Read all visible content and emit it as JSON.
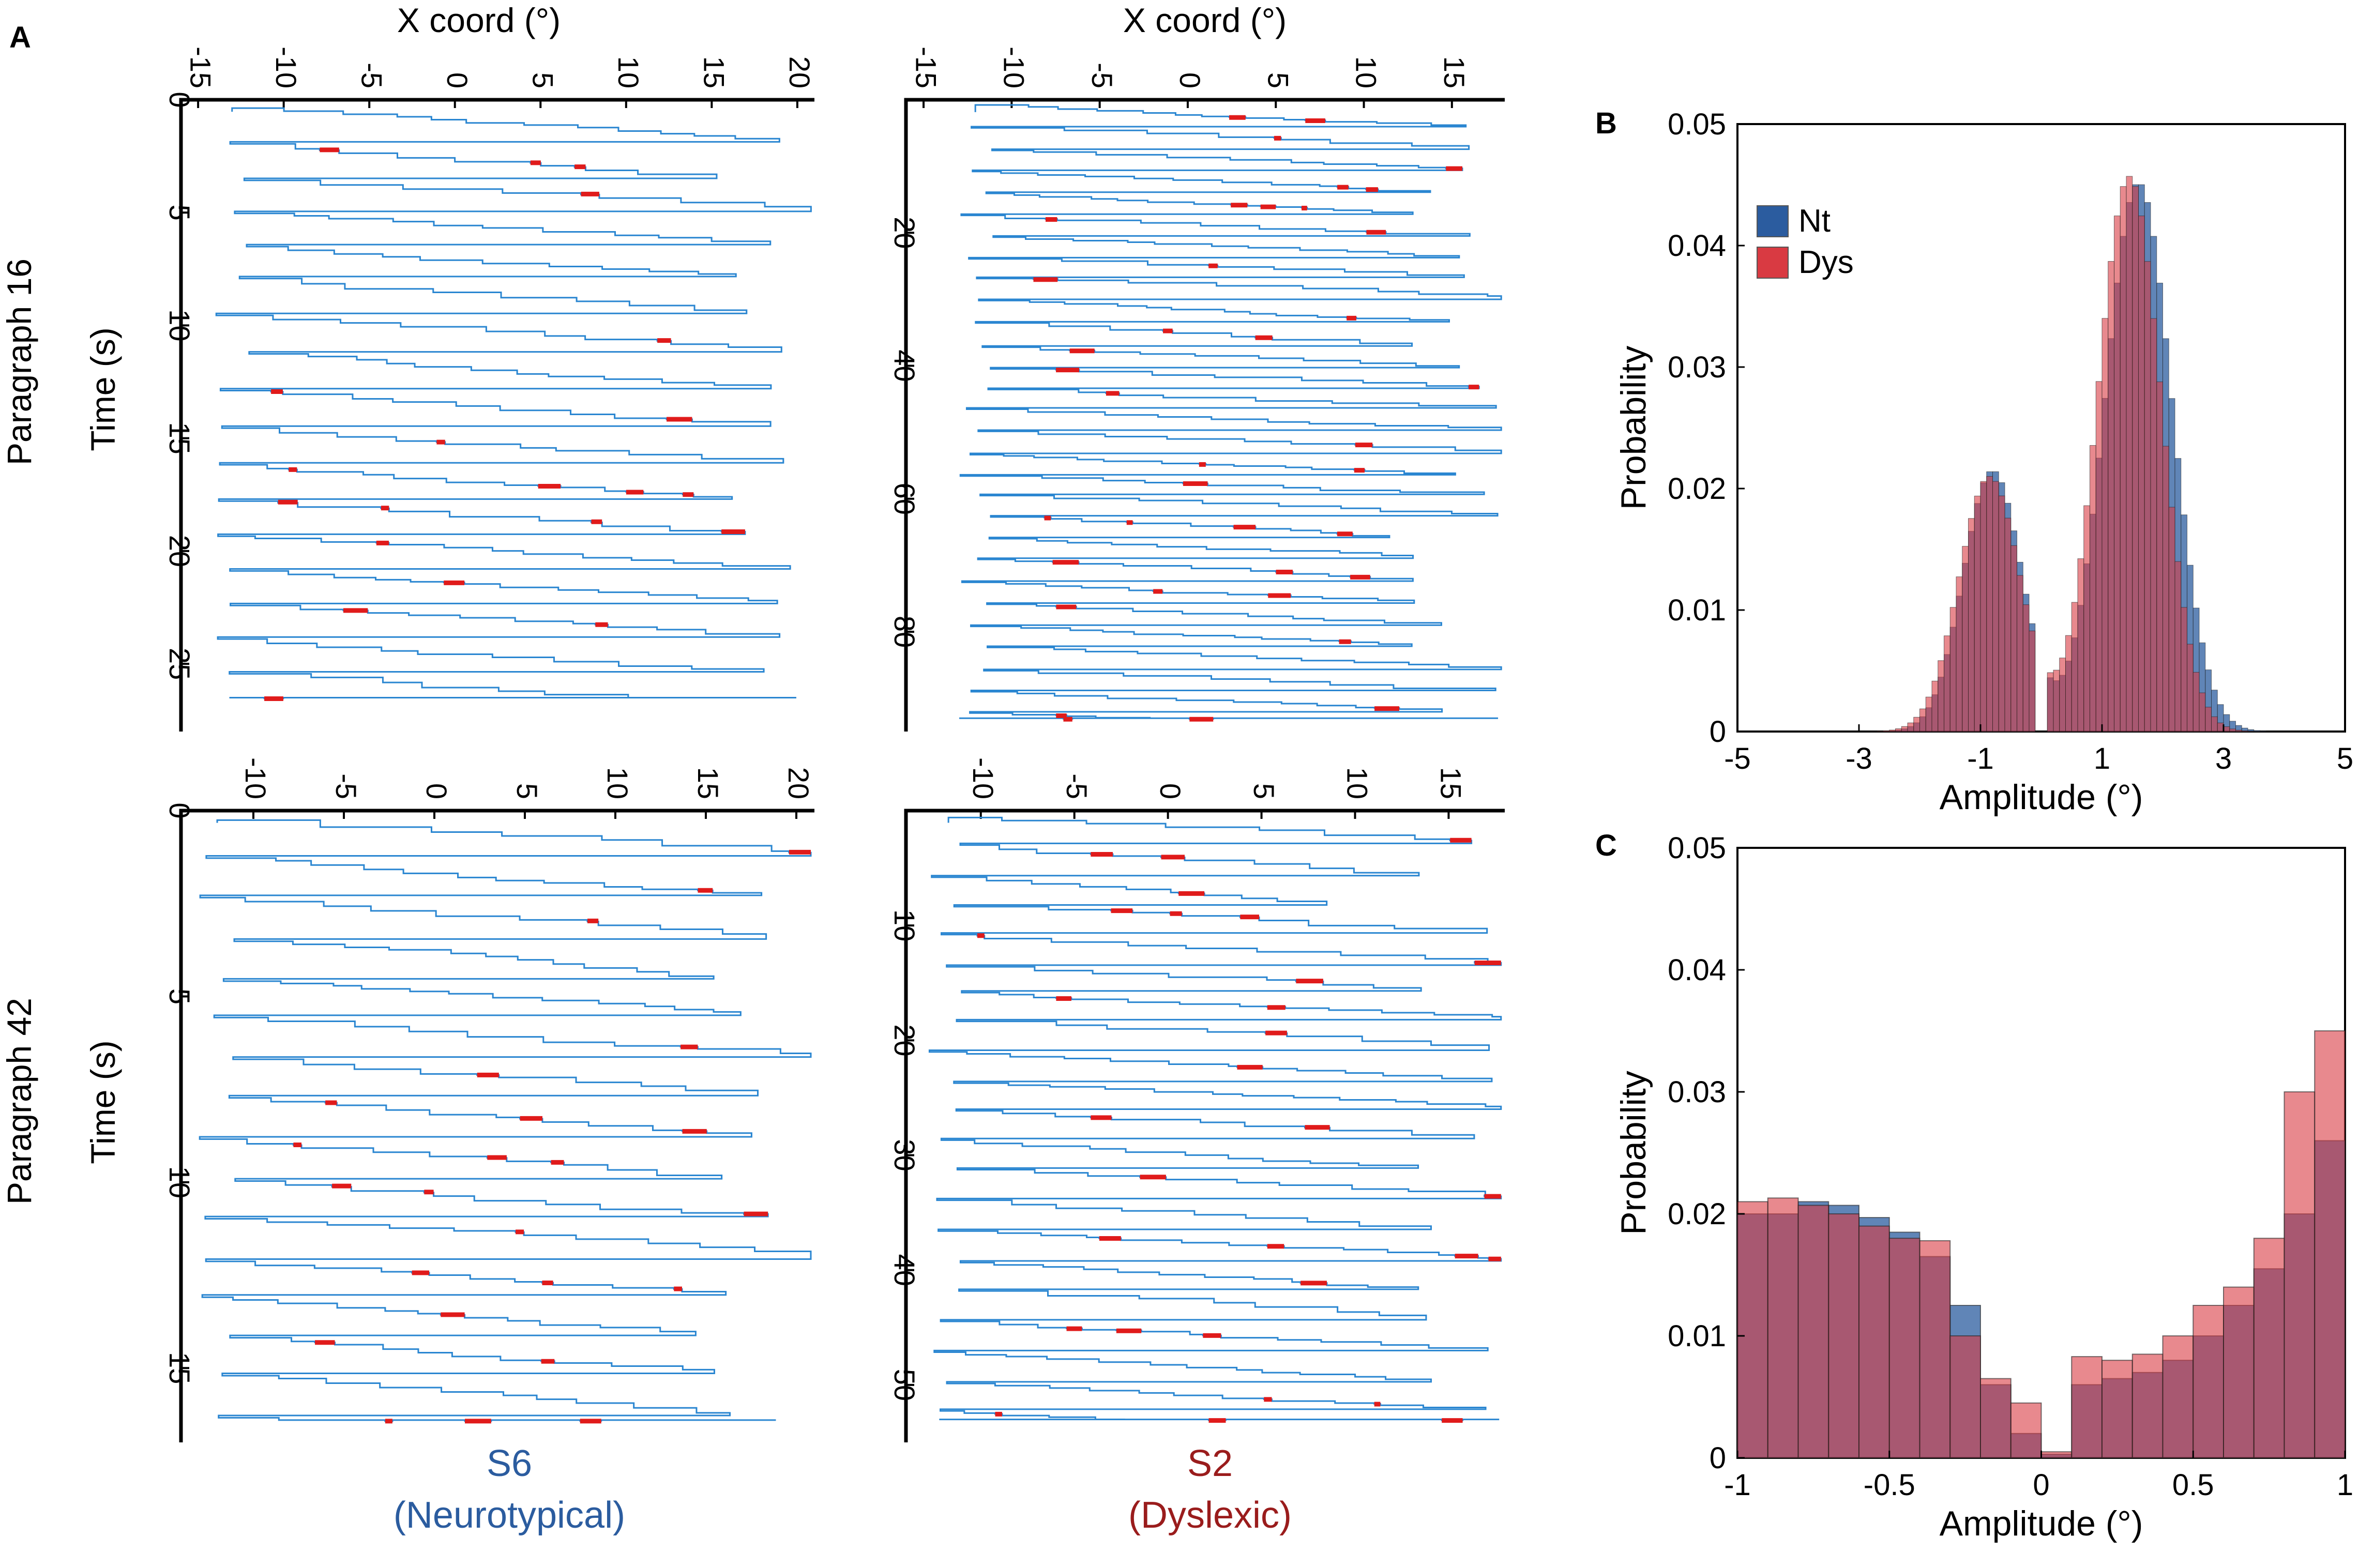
{
  "panel_letters": {
    "a": "A",
    "b": "B",
    "c": "C"
  },
  "colors": {
    "trace": "#2a86d1",
    "regression": "#e01b1b",
    "nt": "#2b5c9f",
    "dys": "#d93a42",
    "nt_text": "#2b5c9f",
    "dys_text": "#9a1c1c"
  },
  "panel_a": {
    "x_axis_title": "X coord (°)",
    "y_axis_title": "Time (s)",
    "row_labels": [
      "Paragraph 16",
      "Paragraph 42"
    ],
    "subject_labels": [
      {
        "id": "S6",
        "group": "(Neurotypical)"
      },
      {
        "id": "S2",
        "group": "(Dyslexic)"
      }
    ]
  },
  "chart_data": [
    {
      "type": "line",
      "name": "S6 Paragraph 16",
      "title": "Paragraph 16 / S6 (Neurotypical)",
      "xlabel": "X coord (°)",
      "ylabel": "Time (s)",
      "xlim": [
        -16,
        21
      ],
      "ylim": [
        0,
        28
      ],
      "y_reversed": true,
      "xticks": [
        -15,
        -10,
        -5,
        0,
        5,
        10,
        15,
        20
      ],
      "yticks": [
        0,
        5,
        10,
        15,
        20,
        25
      ],
      "lines": 18,
      "gaze_start": -14,
      "gaze_end": 20,
      "total_time": 26.5,
      "series": [
        "eye position (blue)",
        "regressions (red)"
      ]
    },
    {
      "type": "line",
      "name": "S2 Paragraph 16",
      "title": "Paragraph 16 / S2 (Dyslexic)",
      "xlabel": "X coord (°)",
      "ylabel": "Time (s)",
      "xlim": [
        -16,
        18
      ],
      "ylim": [
        0,
        95
      ],
      "y_reversed": true,
      "xticks": [
        -15,
        -10,
        -5,
        0,
        5,
        10,
        15
      ],
      "yticks": [
        20,
        40,
        60,
        80
      ],
      "lines": 30,
      "gaze_start": -13,
      "gaze_end": 17,
      "total_time": 93,
      "series": [
        "eye position (blue)",
        "regressions (red)"
      ]
    },
    {
      "type": "line",
      "name": "S6 Paragraph 42",
      "title": "Paragraph 42 / S6 (Neurotypical)",
      "xlabel": "X coord (°)",
      "ylabel": "Time (s)",
      "xlim": [
        -14,
        21
      ],
      "ylim": [
        0,
        17
      ],
      "y_reversed": true,
      "xticks": [
        -10,
        -5,
        0,
        5,
        10,
        15,
        20
      ],
      "yticks": [
        0,
        5,
        10,
        15
      ],
      "lines": 16,
      "gaze_start": -13,
      "gaze_end": 20,
      "total_time": 16.4,
      "series": [
        "eye position (blue)",
        "regressions (red)"
      ]
    },
    {
      "type": "line",
      "name": "S2 Paragraph 42",
      "title": "Paragraph 42 / S2 (Dyslexic)",
      "xlabel": "X coord (°)",
      "ylabel": "Time (s)",
      "xlim": [
        -14,
        18
      ],
      "ylim": [
        0,
        55
      ],
      "y_reversed": true,
      "xticks": [
        -10,
        -5,
        0,
        5,
        10,
        15
      ],
      "yticks": [
        10,
        20,
        30,
        40,
        50
      ],
      "lines": 22,
      "gaze_start": -13,
      "gaze_end": 17,
      "total_time": 53,
      "series": [
        "eye position (blue)",
        "regressions (red)"
      ]
    },
    {
      "type": "bar",
      "name": "Panel B histogram",
      "xlabel": "Amplitude (°)",
      "ylabel": "Probability",
      "xlim": [
        -5,
        5
      ],
      "ylim": [
        0,
        0.05
      ],
      "xticks": [
        -5,
        -3,
        -1,
        1,
        3,
        5
      ],
      "yticks": [
        0,
        0.01,
        0.02,
        0.03,
        0.04,
        0.05
      ],
      "ytick_labels": [
        "0",
        "0.01",
        "0.02",
        "0.03",
        "0.04",
        "0.05"
      ],
      "legend": [
        "Nt",
        "Dys"
      ],
      "legend_position": "top-left",
      "bin_width": 0.1,
      "series": [
        {
          "name": "Nt",
          "peaks": [
            {
              "center": -0.8,
              "height": 0.0215,
              "sd": 0.48
            },
            {
              "center": 1.6,
              "height": 0.0452,
              "sd": 0.55
            }
          ],
          "gap": [
            -0.1,
            0.1
          ]
        },
        {
          "name": "Dys",
          "peaks": [
            {
              "center": -0.85,
              "height": 0.021,
              "sd": 0.5
            },
            {
              "center": 1.45,
              "height": 0.0457,
              "sd": 0.52
            }
          ],
          "gap": [
            -0.1,
            0.1
          ]
        }
      ]
    },
    {
      "type": "bar",
      "name": "Panel C histogram",
      "xlabel": "Amplitude (°)",
      "ylabel": "Probability",
      "xlim": [
        -1,
        1
      ],
      "ylim": [
        0,
        0.05
      ],
      "xticks": [
        -1,
        -0.5,
        0,
        0.5,
        1
      ],
      "xtick_labels": [
        "-1",
        "-0.5",
        "0",
        "0.5",
        "1"
      ],
      "yticks": [
        0,
        0.01,
        0.02,
        0.03,
        0.04,
        0.05
      ],
      "ytick_labels": [
        "0",
        "0.01",
        "0.02",
        "0.03",
        "0.04",
        "0.05"
      ],
      "bin_edges": [
        -1,
        -0.9,
        -0.8,
        -0.7,
        -0.6,
        -0.5,
        -0.4,
        -0.3,
        -0.2,
        -0.1,
        0,
        0.1,
        0.2,
        0.3,
        0.4,
        0.5,
        0.6,
        0.7,
        0.8,
        0.9,
        1
      ],
      "series": [
        {
          "name": "Nt",
          "values": [
            0.02,
            0.02,
            0.021,
            0.0207,
            0.0197,
            0.0185,
            0.0165,
            0.0125,
            0.006,
            0.002,
            0.0003,
            0.006,
            0.0065,
            0.007,
            0.008,
            0.01,
            0.0125,
            0.0155,
            0.02,
            0.026
          ]
        },
        {
          "name": "Dys",
          "values": [
            0.021,
            0.0213,
            0.0207,
            0.02,
            0.019,
            0.018,
            0.0178,
            0.01,
            0.0065,
            0.0045,
            0.0005,
            0.0083,
            0.008,
            0.0085,
            0.01,
            0.0125,
            0.014,
            0.018,
            0.03,
            0.035
          ]
        }
      ]
    }
  ]
}
